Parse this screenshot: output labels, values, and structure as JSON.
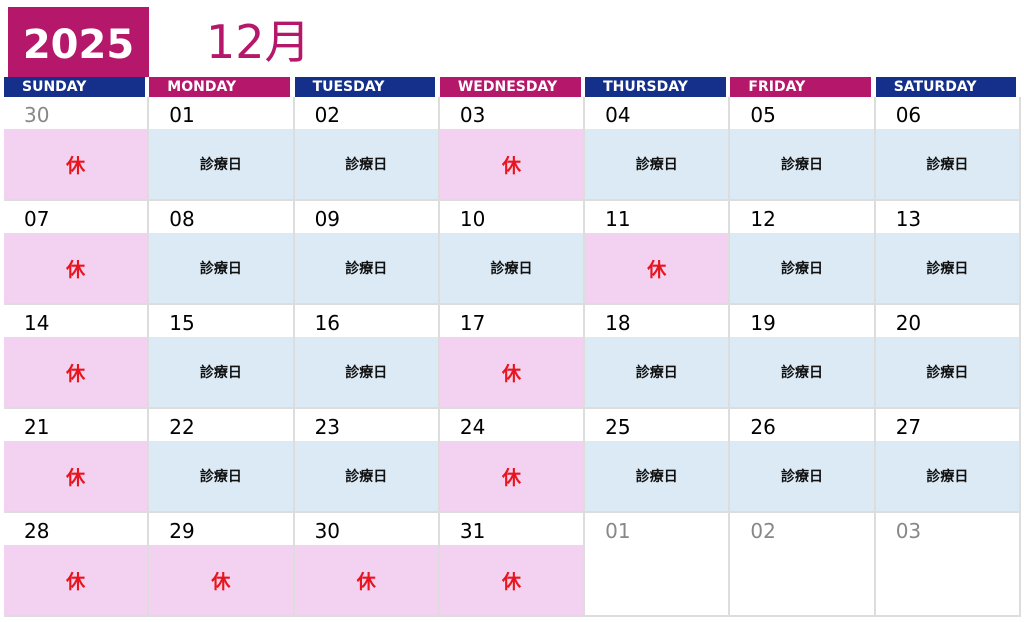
{
  "header": {
    "year": "2025",
    "month": "12月"
  },
  "colors": {
    "navy": "#14308a",
    "magenta": "#b5186a",
    "work_bg": "#dbeaf5",
    "off_bg": "#f2d2f0",
    "off_text": "#e8141e"
  },
  "weekdays": [
    {
      "label": "SUNDAY",
      "color": "navy"
    },
    {
      "label": "MONDAY",
      "color": "magenta"
    },
    {
      "label": "TUESDAY",
      "color": "navy"
    },
    {
      "label": "WEDNESDAY",
      "color": "magenta"
    },
    {
      "label": "THURSDAY",
      "color": "navy"
    },
    {
      "label": "FRIDAY",
      "color": "magenta"
    },
    {
      "label": "SATURDAY",
      "color": "navy"
    }
  ],
  "labels": {
    "work": "診療日",
    "off": "休"
  },
  "weeks": [
    [
      {
        "date": "30",
        "other": true,
        "status": "休",
        "type": "off"
      },
      {
        "date": "01",
        "status": "診療日",
        "type": "work"
      },
      {
        "date": "02",
        "status": "診療日",
        "type": "work"
      },
      {
        "date": "03",
        "status": "休",
        "type": "off"
      },
      {
        "date": "04",
        "status": "診療日",
        "type": "work"
      },
      {
        "date": "05",
        "status": "診療日",
        "type": "work"
      },
      {
        "date": "06",
        "status": "診療日",
        "type": "work"
      }
    ],
    [
      {
        "date": "07",
        "status": "休",
        "type": "off"
      },
      {
        "date": "08",
        "status": "診療日",
        "type": "work"
      },
      {
        "date": "09",
        "status": "診療日",
        "type": "work"
      },
      {
        "date": "10",
        "status": "診療日",
        "type": "work"
      },
      {
        "date": "11",
        "status": "休",
        "type": "off"
      },
      {
        "date": "12",
        "status": "診療日",
        "type": "work"
      },
      {
        "date": "13",
        "status": "診療日",
        "type": "work"
      }
    ],
    [
      {
        "date": "14",
        "status": "休",
        "type": "off"
      },
      {
        "date": "15",
        "status": "診療日",
        "type": "work"
      },
      {
        "date": "16",
        "status": "診療日",
        "type": "work"
      },
      {
        "date": "17",
        "status": "休",
        "type": "off"
      },
      {
        "date": "18",
        "status": "診療日",
        "type": "work"
      },
      {
        "date": "19",
        "status": "診療日",
        "type": "work"
      },
      {
        "date": "20",
        "status": "診療日",
        "type": "work"
      }
    ],
    [
      {
        "date": "21",
        "status": "休",
        "type": "off"
      },
      {
        "date": "22",
        "status": "診療日",
        "type": "work"
      },
      {
        "date": "23",
        "status": "診療日",
        "type": "work"
      },
      {
        "date": "24",
        "status": "休",
        "type": "off"
      },
      {
        "date": "25",
        "status": "診療日",
        "type": "work"
      },
      {
        "date": "26",
        "status": "診療日",
        "type": "work"
      },
      {
        "date": "27",
        "status": "診療日",
        "type": "work"
      }
    ],
    [
      {
        "date": "28",
        "status": "休",
        "type": "off"
      },
      {
        "date": "29",
        "status": "休",
        "type": "off"
      },
      {
        "date": "30",
        "status": "休",
        "type": "off"
      },
      {
        "date": "31",
        "status": "休",
        "type": "off"
      },
      {
        "date": "01",
        "other": true,
        "type": "none"
      },
      {
        "date": "02",
        "other": true,
        "type": "none"
      },
      {
        "date": "03",
        "other": true,
        "type": "none"
      }
    ]
  ]
}
